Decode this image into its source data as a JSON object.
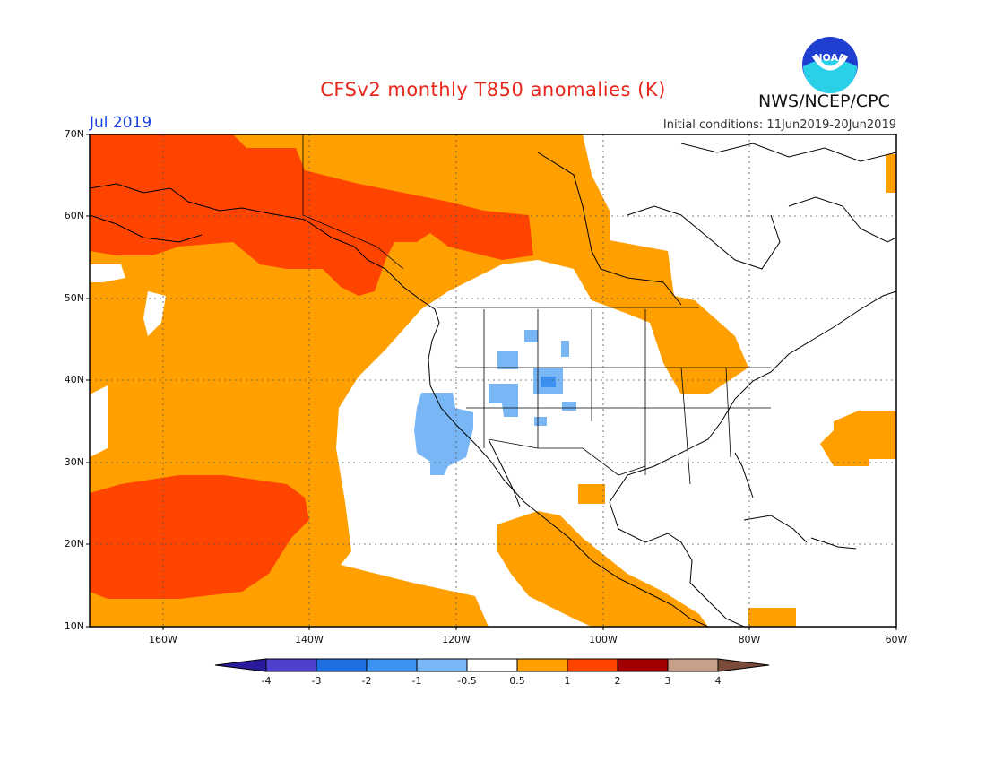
{
  "title": "CFSv2 monthly T850 anomalies (K)",
  "agency": "NWS/NCEP/CPC",
  "logo_text": "NOAA",
  "forecast_month": "Jul 2019",
  "initial_conditions": "Initial conditions: 11Jun2019-20Jun2019",
  "map": {
    "lat_labels": [
      "70N",
      "60N",
      "50N",
      "40N",
      "30N",
      "20N",
      "10N"
    ],
    "lon_labels": [
      "160W",
      "140W",
      "120W",
      "100W",
      "80W",
      "60W"
    ],
    "lat_range": [
      10,
      70
    ],
    "lon_range": [
      -170,
      -60
    ],
    "grid": "dotted"
  },
  "colorbar": {
    "labels": [
      "-4",
      "-3",
      "-2",
      "-1",
      "-0.5",
      "0.5",
      "1",
      "2",
      "3",
      "4"
    ],
    "colors": [
      "#2a1a9c",
      "#5040d0",
      "#1f6fe0",
      "#3d91f0",
      "#78b6f5",
      "#ffffff",
      "#ffa000",
      "#ff4400",
      "#a00000",
      "#c8a08a",
      "#7b4b3a"
    ]
  },
  "colors": {
    "pos_05_1": "#ffa000",
    "pos_1_2": "#ff4400",
    "neg_05_1": "#78b6f5",
    "neg_1_2": "#3d91f0",
    "title": "#e8261c",
    "month": "#1a3fe0"
  }
}
